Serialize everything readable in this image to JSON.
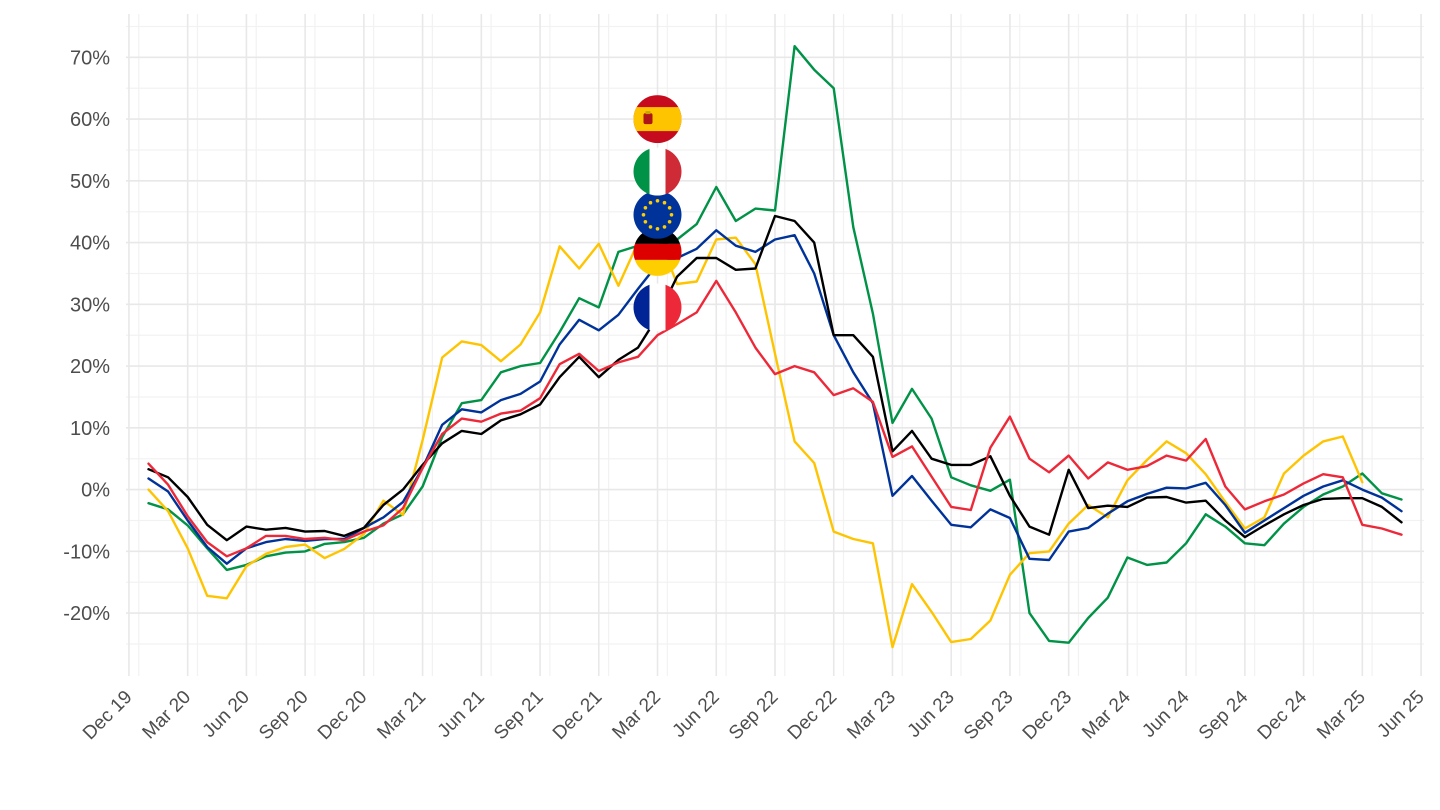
{
  "chart_data": {
    "type": "line",
    "title": "",
    "xlabel": "",
    "ylabel": "",
    "x_range": [
      "2019-12-01",
      "2025-06-01"
    ],
    "y_range": [
      -30,
      75
    ],
    "y_ticks": [
      -20,
      -10,
      0,
      10,
      20,
      30,
      40,
      50,
      60,
      70
    ],
    "y_tick_labels": [
      "-20%",
      "-10%",
      "0%",
      "10%",
      "20%",
      "30%",
      "40%",
      "50%",
      "60%",
      "70%"
    ],
    "x_ticks": [
      "2019-12-01",
      "2020-03-01",
      "2020-06-01",
      "2020-09-01",
      "2020-12-01",
      "2021-03-01",
      "2021-06-01",
      "2021-09-01",
      "2021-12-01",
      "2022-03-01",
      "2022-06-01",
      "2022-09-01",
      "2022-12-01",
      "2023-03-01",
      "2023-06-01",
      "2023-09-01",
      "2023-12-01",
      "2024-03-01",
      "2024-06-01",
      "2024-09-01",
      "2024-12-01",
      "2025-03-01",
      "2025-06-01"
    ],
    "x_tick_labels": [
      "Dec 19",
      "Mar 20",
      "Jun 20",
      "Sep 20",
      "Dec 20",
      "Mar 21",
      "Jun 21",
      "Sep 21",
      "Dec 21",
      "Mar 22",
      "Jun 22",
      "Sep 22",
      "Dec 22",
      "Mar 23",
      "Jun 23",
      "Sep 23",
      "Dec 23",
      "Mar 24",
      "Jun 24",
      "Sep 24",
      "Dec 24",
      "Mar 25",
      "Jun 25"
    ],
    "grid": true,
    "legend": "flag markers at Mar 22",
    "flag_markers": [
      {
        "flag": "spain-flag",
        "y": 60
      },
      {
        "flag": "italy-flag",
        "y": 51.5
      },
      {
        "flag": "eu-flag",
        "y": 44.5
      },
      {
        "flag": "germany-flag",
        "y": 38.5
      },
      {
        "flag": "france-flag",
        "y": 29.5
      }
    ],
    "x": [
      "2020-01-01",
      "2020-02-01",
      "2020-03-01",
      "2020-04-01",
      "2020-05-01",
      "2020-06-01",
      "2020-07-01",
      "2020-08-01",
      "2020-09-01",
      "2020-10-01",
      "2020-11-01",
      "2020-12-01",
      "2021-01-01",
      "2021-02-01",
      "2021-03-01",
      "2021-04-01",
      "2021-05-01",
      "2021-06-01",
      "2021-07-01",
      "2021-08-01",
      "2021-09-01",
      "2021-10-01",
      "2021-11-01",
      "2021-12-01",
      "2022-01-01",
      "2022-02-01",
      "2022-03-01",
      "2022-04-01",
      "2022-05-01",
      "2022-06-01",
      "2022-07-01",
      "2022-08-01",
      "2022-09-01",
      "2022-10-01",
      "2022-11-01",
      "2022-12-01",
      "2023-01-01",
      "2023-02-01",
      "2023-03-01",
      "2023-04-01",
      "2023-05-01",
      "2023-06-01",
      "2023-07-01",
      "2023-08-01",
      "2023-09-01",
      "2023-10-01",
      "2023-11-01",
      "2023-12-01",
      "2024-01-01",
      "2024-02-01",
      "2024-03-01",
      "2024-04-01",
      "2024-05-01",
      "2024-06-01",
      "2024-07-01",
      "2024-08-01",
      "2024-09-01",
      "2024-10-01",
      "2024-11-01",
      "2024-12-01",
      "2025-01-01",
      "2025-02-01",
      "2025-03-01",
      "2025-04-01",
      "2025-05-01"
    ],
    "series": [
      {
        "color": "#009246",
        "values": [
          -2.2,
          -3.2,
          -5.8,
          -9.5,
          -13.0,
          -12.2,
          -10.8,
          -10.2,
          -10.0,
          -8.8,
          -8.5,
          -7.8,
          -5.5,
          -4.0,
          0.5,
          8.5,
          14.0,
          14.5,
          19.0,
          20.0,
          20.5,
          25.5,
          31.0,
          29.5,
          38.5,
          39.5,
          39.5,
          40.5,
          43.0,
          49.0,
          43.5,
          45.5,
          45.2,
          71.8,
          68.0,
          65.0,
          42.5,
          28.5,
          10.8,
          16.3,
          11.5,
          2.0,
          0.7,
          -0.2,
          1.6,
          -20.0,
          -24.5,
          -24.8,
          -20.8,
          -17.5,
          -11.0,
          -12.2,
          -11.8,
          -8.7,
          -4.0,
          -6.0,
          -8.7,
          -9.0,
          -5.5,
          -2.8,
          -0.8,
          0.5,
          2.6,
          -0.6,
          -1.6
        ]
      },
      {
        "color": "#FFC400",
        "values": [
          0.0,
          -3.5,
          -9.5,
          -17.2,
          -17.6,
          -12.4,
          -10.4,
          -9.3,
          -8.9,
          -11.1,
          -9.6,
          -7.2,
          -1.8,
          -4.1,
          8.0,
          21.4,
          24.0,
          23.4,
          20.8,
          23.5,
          28.7,
          39.4,
          35.8,
          39.8,
          33.0,
          40.0,
          41.5,
          33.3,
          33.7,
          40.5,
          40.8,
          36.5,
          22.0,
          7.8,
          4.3,
          -6.8,
          -8.0,
          -8.7,
          -25.5,
          -15.3,
          -19.8,
          -24.7,
          -24.2,
          -21.2,
          -13.8,
          -10.3,
          -10.0,
          -5.5,
          -2.5,
          -4.5,
          1.5,
          4.8,
          7.8,
          5.9,
          2.5,
          -2.0,
          -6.3,
          -4.5,
          2.6,
          5.5,
          7.8,
          8.6,
          1.2,
          null,
          null
        ]
      },
      {
        "color": "#003399",
        "values": [
          1.8,
          -0.3,
          -5.0,
          -9.3,
          -12.0,
          -9.5,
          -8.5,
          -8.0,
          -8.3,
          -8.0,
          -8.0,
          -6.2,
          -4.5,
          -2.0,
          3.5,
          10.5,
          13.0,
          12.5,
          14.5,
          15.5,
          17.5,
          23.5,
          27.5,
          25.8,
          28.3,
          32.5,
          36.5,
          37.5,
          39.0,
          42.0,
          39.5,
          38.5,
          40.5,
          41.2,
          35.0,
          25.0,
          19.0,
          14.0,
          -1.0,
          2.2,
          -1.8,
          -5.7,
          -6.1,
          -3.2,
          -4.6,
          -11.2,
          -11.4,
          -6.8,
          -6.2,
          -3.9,
          -1.9,
          -0.7,
          0.3,
          0.2,
          1.1,
          -2.5,
          -7.0,
          -5.0,
          -3.0,
          -1.0,
          0.5,
          1.5,
          0.0,
          -1.3,
          -3.5
        ]
      },
      {
        "color": "#000000",
        "values": [
          3.3,
          2.0,
          -1.2,
          -5.7,
          -8.2,
          -6.0,
          -6.5,
          -6.2,
          -6.8,
          -6.7,
          -7.5,
          -6.2,
          -2.5,
          0.0,
          4.0,
          7.5,
          9.5,
          9.0,
          11.2,
          12.2,
          13.8,
          18.2,
          21.5,
          18.2,
          21.0,
          23.0,
          28.0,
          34.5,
          37.5,
          37.5,
          35.6,
          35.8,
          44.3,
          43.5,
          40.0,
          25.0,
          25.0,
          21.5,
          6.2,
          9.5,
          5.0,
          4.0,
          4.0,
          5.4,
          -1.0,
          -6.0,
          -7.3,
          3.2,
          -3.0,
          -2.6,
          -2.8,
          -1.3,
          -1.2,
          -2.1,
          -1.8,
          -5.0,
          -7.7,
          -5.8,
          -4.0,
          -2.5,
          -1.5,
          -1.4,
          -1.4,
          -2.8,
          -5.3
        ]
      },
      {
        "color": "#ED2939",
        "values": [
          4.2,
          0.8,
          -4.3,
          -8.5,
          -10.8,
          -9.5,
          -7.5,
          -7.5,
          -8.0,
          -7.8,
          -8.2,
          -6.8,
          -5.8,
          -3.0,
          3.5,
          9.0,
          11.5,
          11.0,
          12.3,
          12.8,
          14.8,
          20.3,
          22.0,
          19.2,
          20.6,
          21.5,
          25.0,
          26.8,
          28.7,
          33.8,
          28.7,
          23.0,
          18.7,
          20.0,
          19.0,
          15.3,
          16.4,
          14.2,
          5.3,
          7.0,
          2.1,
          -2.8,
          -3.3,
          6.8,
          11.8,
          5.0,
          2.8,
          5.5,
          1.8,
          4.4,
          3.2,
          3.8,
          5.5,
          4.7,
          8.2,
          0.5,
          -3.2,
          -1.9,
          -0.8,
          1.0,
          2.5,
          2.0,
          -5.7,
          -6.3,
          -7.3
        ]
      }
    ]
  }
}
